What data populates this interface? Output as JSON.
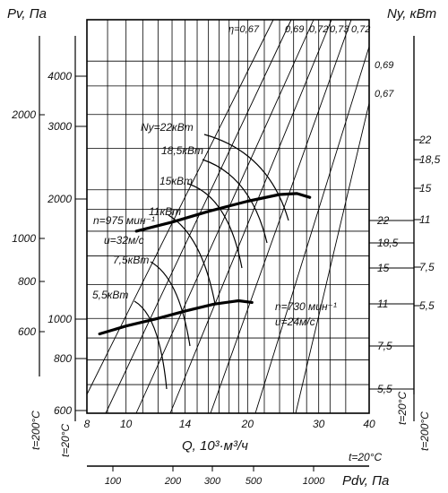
{
  "chart_data": {
    "type": "line",
    "title": "",
    "xlabel": "Q, 10³·м³/ч",
    "ylabel": "Pv, Па",
    "y2label": "Ny, кВт",
    "pdv_label": "Pdv, Па",
    "temp_200": "t=200°C",
    "temp_20": "t=20°C",
    "x_ticks": [
      8,
      10,
      14,
      20,
      30,
      40
    ],
    "xlim": [
      8,
      40
    ],
    "x_scale": "log",
    "ylim": [
      600,
      5000
    ],
    "y_scale": "log",
    "grid": true,
    "pv_ticks_20": [
      600,
      800,
      1000,
      2000,
      3000,
      4000
    ],
    "pv_ticks_200": [
      600,
      800,
      1000,
      2000
    ],
    "pdv_ticks": [
      100,
      200,
      300,
      500,
      1000
    ],
    "ny_ticks_right_inner": [
      "22",
      "18,5",
      "15",
      "11",
      "7,5",
      "5,5"
    ],
    "ny_ticks_right_outer": [
      "22",
      "18,5",
      "15",
      "11",
      "7,5",
      "5,5"
    ],
    "eta_label": "η=0,67",
    "eta_top_values": [
      "0,69",
      "0,72",
      "0,73",
      "0,72"
    ],
    "eta_side_values": [
      "0,69",
      "0,67"
    ],
    "series": [
      {
        "name": "n=975 мин⁻¹",
        "name2": "u=32м/с",
        "x": [
          10.6,
          13,
          16,
          20,
          24,
          26.5,
          28.5
        ],
        "y": [
          1600,
          1680,
          1780,
          1880,
          1950,
          1960,
          1920
        ]
      },
      {
        "name": "n=730 мин⁻¹",
        "name2": "u=24м/с",
        "x": [
          8.6,
          10,
          12,
          14,
          16.5,
          19,
          20.5
        ],
        "y": [
          920,
          960,
          1000,
          1040,
          1080,
          1100,
          1090
        ]
      }
    ],
    "power_labels": [
      "Ny=22кВт",
      "18,5кВт",
      "15кВт",
      "11кВт",
      "7,5кВт",
      "5,5кВт"
    ]
  }
}
